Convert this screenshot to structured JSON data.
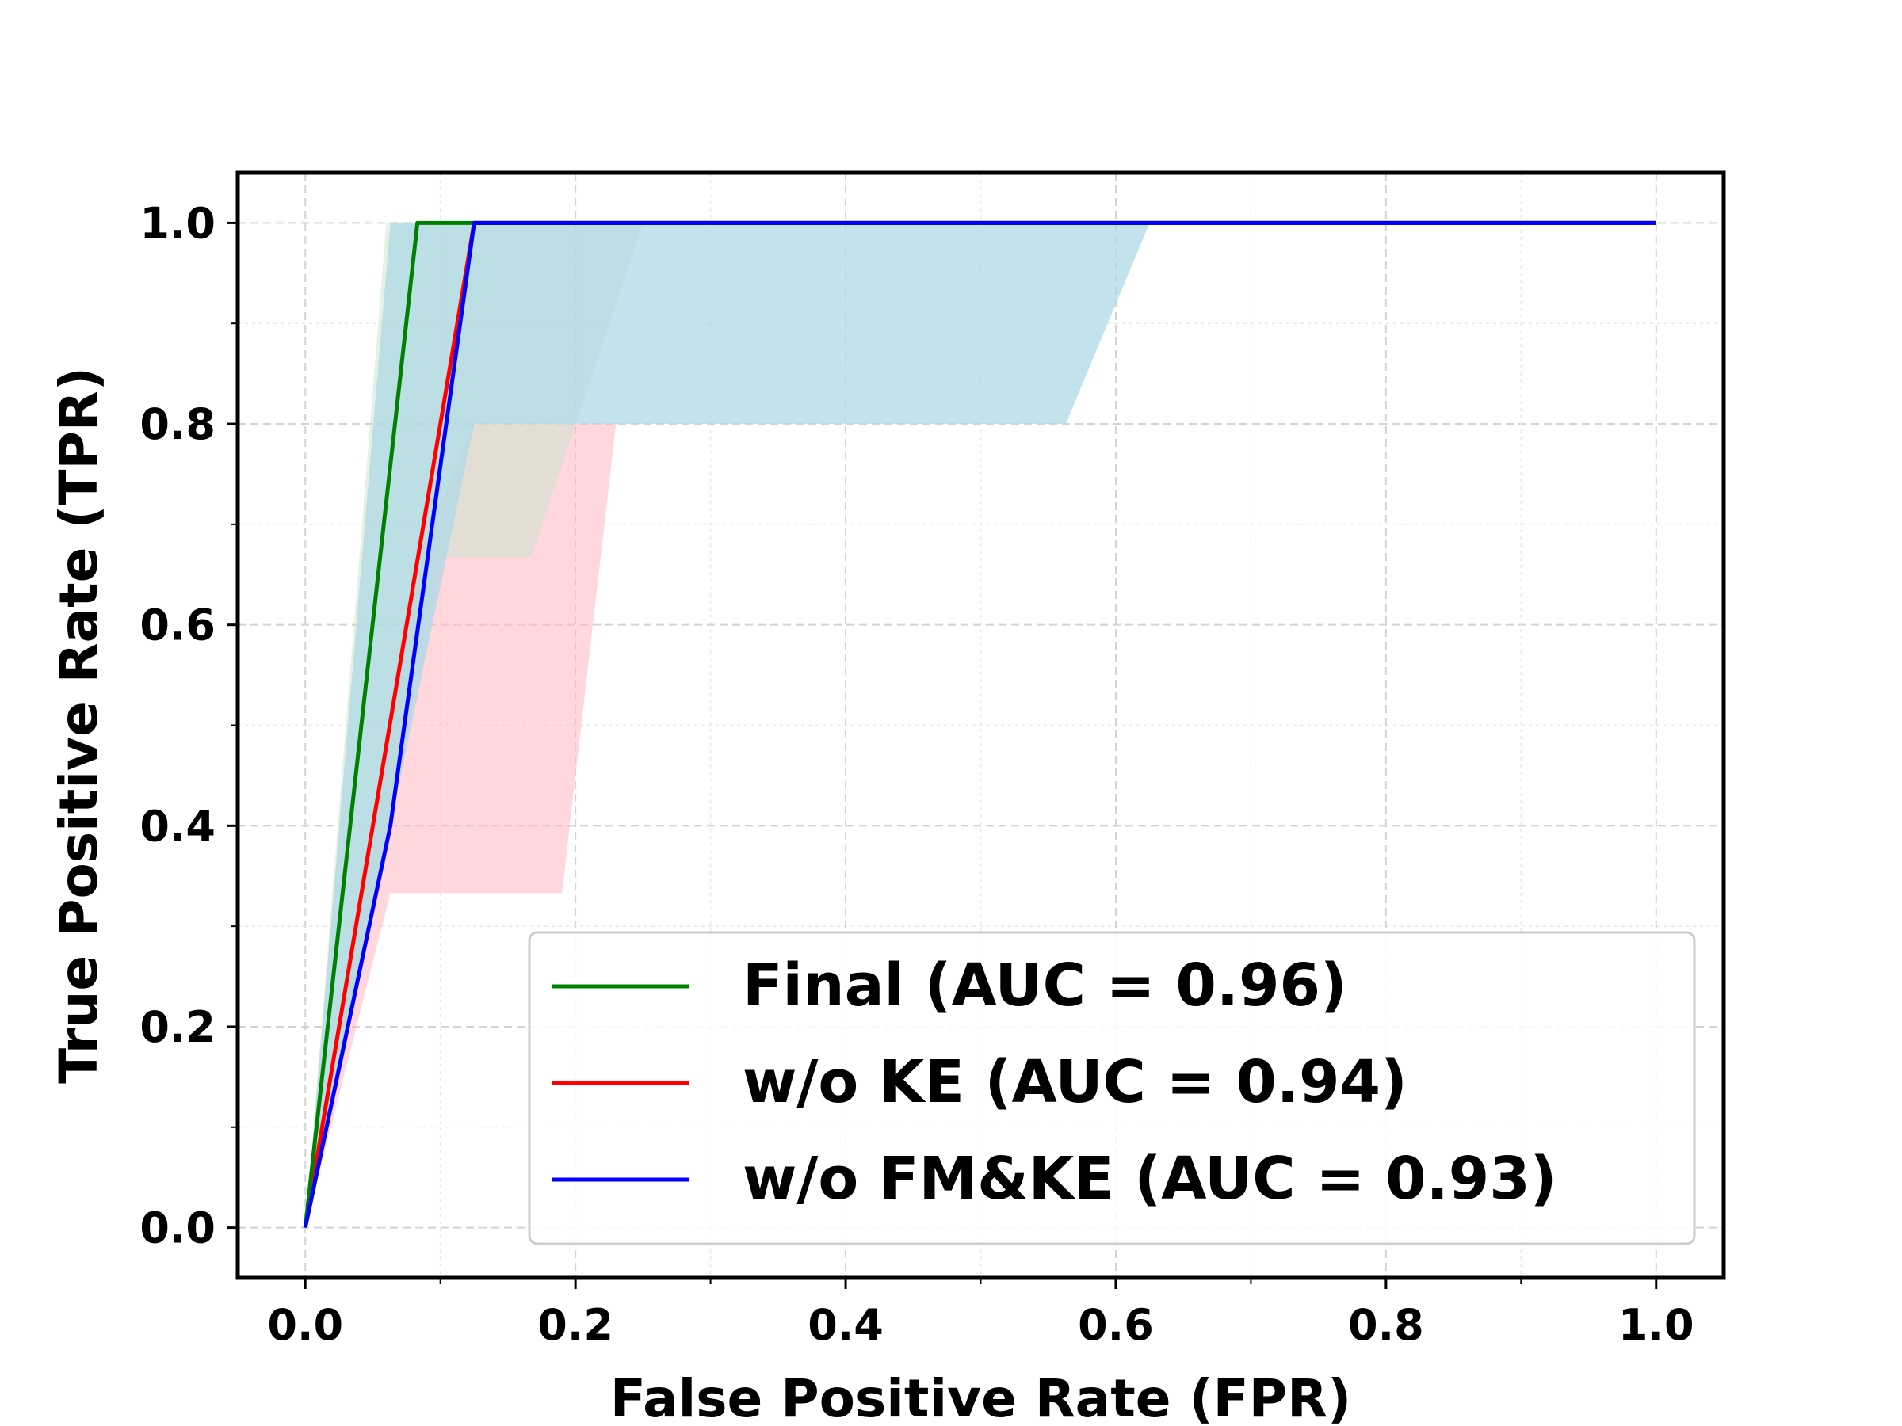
{
  "chart_data": {
    "type": "line",
    "title": "",
    "xlabel": "False Positive Rate (FPR)",
    "ylabel": "True Positive Rate (TPR)",
    "xlim": [
      -0.05,
      1.05
    ],
    "ylim": [
      -0.05,
      1.05
    ],
    "xticks": [
      0.0,
      0.2,
      0.4,
      0.6,
      0.8,
      1.0
    ],
    "yticks": [
      0.0,
      0.2,
      0.4,
      0.6,
      0.8,
      1.0
    ],
    "xtick_labels": [
      "0.0",
      "0.2",
      "0.4",
      "0.6",
      "0.8",
      "1.0"
    ],
    "ytick_labels": [
      "0.0",
      "0.2",
      "0.4",
      "0.6",
      "0.8",
      "1.0"
    ],
    "grid": true,
    "legend_position": "bottom-right",
    "series": [
      {
        "name": "Final (AUC = 0.96)",
        "color": "#008000",
        "x": [
          0.0,
          0.083,
          0.125,
          1.0
        ],
        "y": [
          0.0,
          1.0,
          1.0,
          1.0
        ]
      },
      {
        "name": "w/o KE (AUC = 0.94)",
        "color": "#ff0000",
        "x": [
          0.0,
          0.125,
          1.0
        ],
        "y": [
          0.0,
          1.0,
          1.0
        ]
      },
      {
        "name": "w/o FM&KE (AUC = 0.93)",
        "color": "#0000ff",
        "x": [
          0.0,
          0.063,
          0.125,
          1.0
        ],
        "y": [
          0.0,
          0.4,
          1.0,
          1.0
        ]
      }
    ],
    "bands": [
      {
        "color": "#ffb6c1",
        "opacity": 0.55,
        "upper": [
          [
            0.0,
            0.0
          ],
          [
            0.083,
            0.667
          ],
          [
            0.125,
            0.8
          ],
          [
            0.23,
            0.8
          ],
          [
            0.25,
            1.0
          ]
        ],
        "lower": [
          [
            0.25,
            1.0
          ],
          [
            0.23,
            0.8
          ],
          [
            0.19,
            0.333
          ],
          [
            0.063,
            0.333
          ],
          [
            0.0,
            0.0
          ]
        ]
      },
      {
        "color": "#c8e6c9",
        "opacity": 0.5,
        "upper": [
          [
            0.0,
            0.0
          ],
          [
            0.06,
            1.0
          ],
          [
            0.25,
            1.0
          ]
        ],
        "lower": [
          [
            0.25,
            1.0
          ],
          [
            0.167,
            0.667
          ],
          [
            0.1,
            0.667
          ],
          [
            0.0,
            0.0
          ]
        ]
      },
      {
        "color": "#add8e6",
        "opacity": 0.75,
        "upper": [
          [
            0.0,
            0.0
          ],
          [
            0.063,
            1.0
          ],
          [
            0.625,
            1.0
          ]
        ],
        "lower": [
          [
            0.625,
            1.0
          ],
          [
            0.563,
            0.8
          ],
          [
            0.125,
            0.8
          ],
          [
            0.063,
            0.4
          ],
          [
            0.0,
            0.0
          ]
        ]
      }
    ]
  }
}
